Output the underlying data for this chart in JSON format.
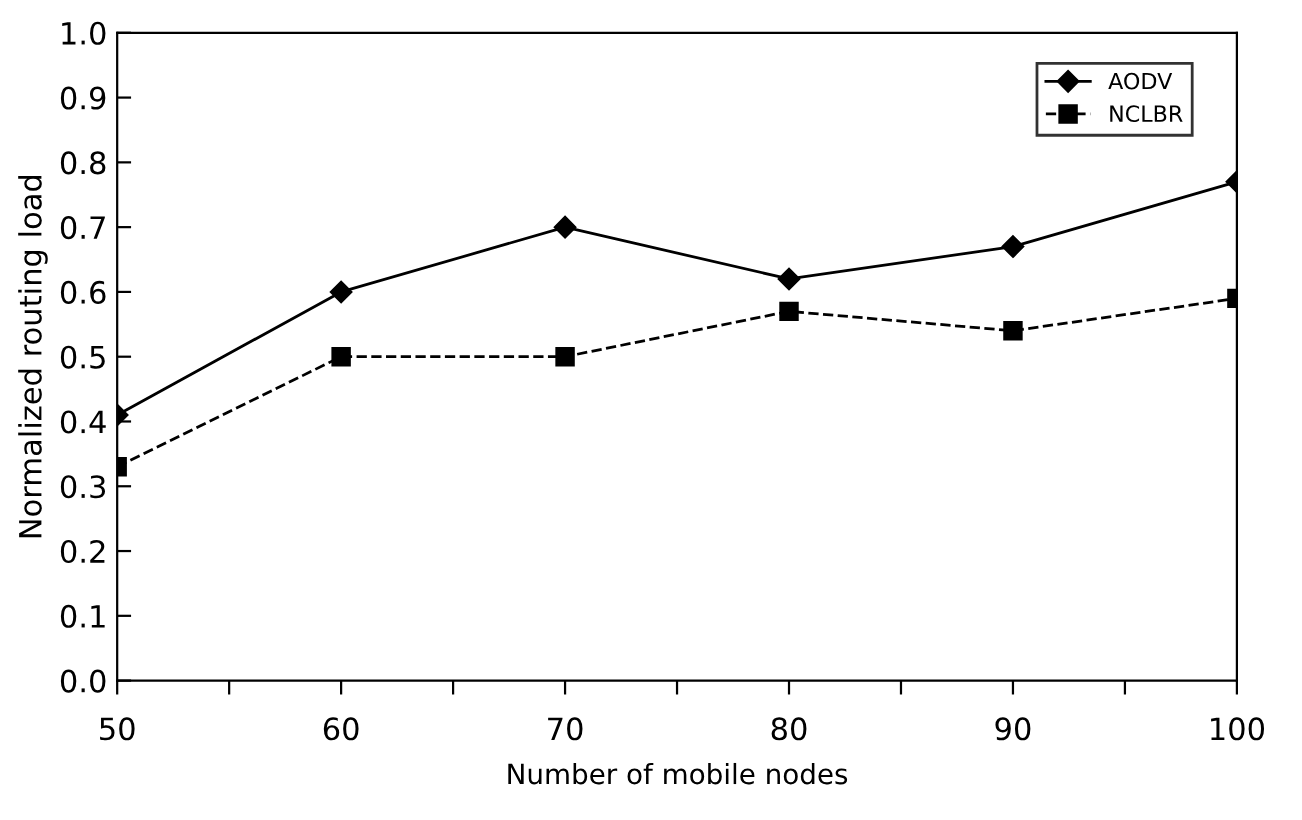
{
  "chart_data": {
    "type": "line",
    "xlabel": "Number of mobile nodes",
    "ylabel": "Normalized routing load",
    "x": [
      50,
      60,
      70,
      80,
      90,
      100
    ],
    "series": [
      {
        "name": "AODV",
        "color": "#000000",
        "marker": "diamond",
        "line_style": "solid",
        "values": [
          0.41,
          0.6,
          0.7,
          0.62,
          0.67,
          0.77
        ]
      },
      {
        "name": "NCLBR",
        "color": "#000000",
        "marker": "square",
        "line_style": "dashed",
        "values": [
          0.33,
          0.5,
          0.5,
          0.57,
          0.54,
          0.59
        ]
      }
    ],
    "xlim": [
      50,
      100
    ],
    "xticks": [
      50,
      {
        "value": 55,
        "label": null
      },
      60,
      {
        "value": 65,
        "label": null
      },
      70,
      {
        "value": 75,
        "label": null
      },
      80,
      {
        "value": 85,
        "label": null
      },
      90,
      {
        "value": 95,
        "label": null
      },
      100
    ],
    "ylim": [
      0,
      1
    ],
    "yticks": [
      {
        "value": 0,
        "label": "0.0"
      },
      0.1,
      0.2,
      0.3,
      0.4,
      0.5,
      0.6,
      0.7,
      0.8,
      0.9,
      {
        "value": 1,
        "label": "1.0"
      }
    ],
    "grid": false,
    "legend": "top right"
  }
}
